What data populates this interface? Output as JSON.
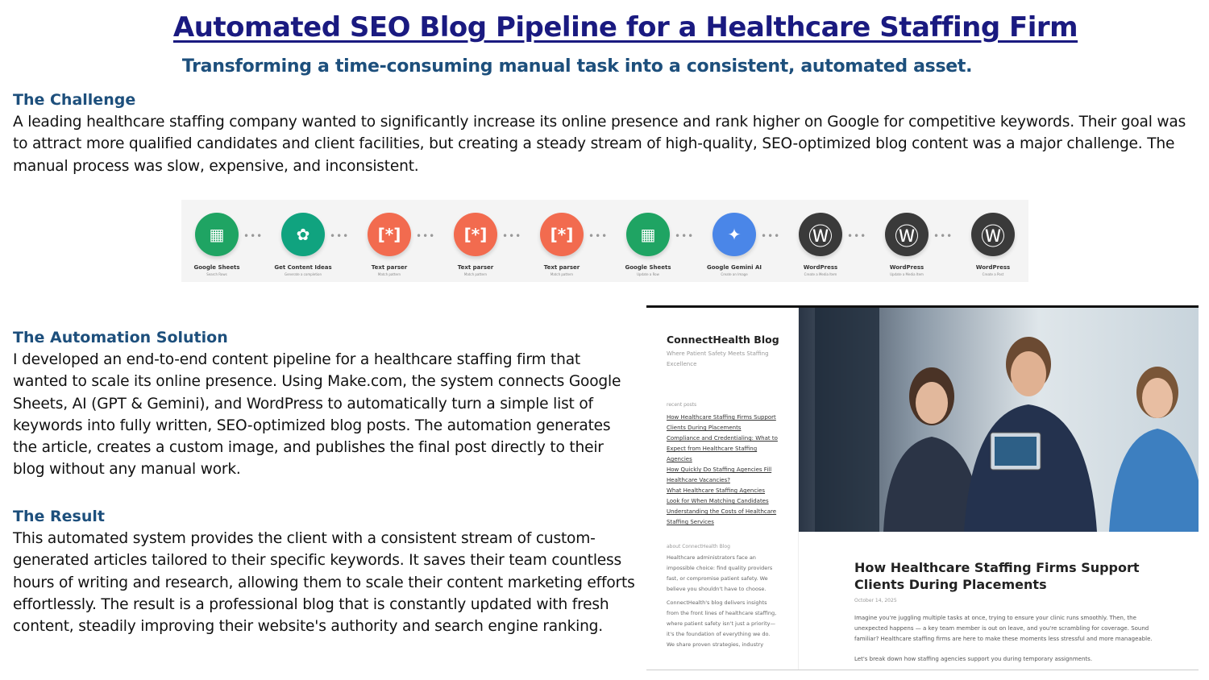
{
  "header": {
    "title": "Automated SEO Blog Pipeline for a Healthcare Staffing Firm",
    "subtitle": "Transforming a time-consuming manual task into a consistent, automated asset."
  },
  "challenge": {
    "heading": "The Challenge",
    "text": "A leading healthcare staffing company wanted to significantly increase its online presence and rank higher on Google for competitive keywords. Their goal was to attract more qualified candidates and client facilities, but creating a steady stream of high-quality, SEO-optimized blog content was a major challenge. The manual process was slow, expensive, and inconsistent."
  },
  "pipeline": {
    "modules": [
      {
        "label": "Google Sheets",
        "sub": "Search Rows",
        "icon": "google-sheets-icon",
        "color": "#1fa463"
      },
      {
        "label": "Get Content Ideas",
        "sub": "Generate a completion",
        "icon": "openai-icon",
        "color": "#10a37f"
      },
      {
        "label": "Text parser",
        "sub": "Match pattern",
        "icon": "text-parser-icon",
        "color": "#f26b4f"
      },
      {
        "label": "Text parser",
        "sub": "Match pattern",
        "icon": "text-parser-icon",
        "color": "#f26b4f"
      },
      {
        "label": "Text parser",
        "sub": "Match pattern",
        "icon": "text-parser-icon",
        "color": "#f26b4f"
      },
      {
        "label": "Google Sheets",
        "sub": "Update a Row",
        "icon": "google-sheets-icon",
        "color": "#1fa463"
      },
      {
        "label": "Google Gemini AI",
        "sub": "Create an Image",
        "icon": "gemini-icon",
        "color": "#4a86e8"
      },
      {
        "label": "WordPress",
        "sub": "Create a Media Item",
        "icon": "wordpress-icon",
        "color": "#3a3a3a"
      },
      {
        "label": "WordPress",
        "sub": "Update a Media Item",
        "icon": "wordpress-icon",
        "color": "#3a3a3a"
      },
      {
        "label": "WordPress",
        "sub": "Create a Post",
        "icon": "wordpress-icon",
        "color": "#3a3a3a"
      }
    ]
  },
  "solution": {
    "heading": "The Automation Solution",
    "text": "I developed an end-to-end content pipeline for a healthcare staffing firm that wanted to scale its online presence. Using Make.com, the system connects Google Sheets, AI (GPT & Gemini), and WordPress to automatically turn a simple list of keywords into fully written, SEO-optimized blog posts. The automation generates the article, creates a custom image, and publishes the final post directly to their blog without any manual work."
  },
  "result": {
    "heading": "The Result",
    "text": "This automated system provides the client with a consistent stream of custom-generated articles tailored to their specific keywords. It saves their team countless hours of writing and research, allowing them to scale their content marketing efforts effortlessly. The result is a professional blog that is constantly updated with fresh content, steadily improving their website's authority and search engine ranking."
  },
  "blog": {
    "name": "ConnectHealth Blog",
    "tagline": "Where Patient Safety Meets Staffing Excellence",
    "recent_label": "recent posts",
    "recent_posts": [
      "How Healthcare Staffing Firms Support Clients During Placements",
      "Compliance and Credentialing: What to Expect from Healthcare Staffing Agencies",
      "How Quickly Do Staffing Agencies Fill Healthcare Vacancies?",
      "What Healthcare Staffing Agencies Look for When Matching Candidates",
      "Understanding the Costs of Healthcare Staffing Services"
    ],
    "about_label": "about ConnectHealth Blog",
    "about_1": "Healthcare administrators face an impossible choice: find quality providers fast, or compromise patient safety. We believe you shouldn't have to choose.",
    "about_2": "ConnectHealth's blog delivers insights from the front lines of healthcare staffing, where patient safety isn't just a priority—it's the foundation of everything we do. We share proven strategies, industry",
    "post_title": "How Healthcare Staffing Firms Support Clients During Placements",
    "post_date": "October 14, 2025",
    "post_p1": "Imagine you're juggling multiple tasks at once, trying to ensure your clinic runs smoothly. Then, the unexpected happens — a key team member is out on leave, and you're scrambling for coverage. Sound familiar? Healthcare staffing firms are here to make these moments less stressful and more manageable.",
    "post_p2": "Let's break down how staffing agencies support you during temporary assignments."
  }
}
